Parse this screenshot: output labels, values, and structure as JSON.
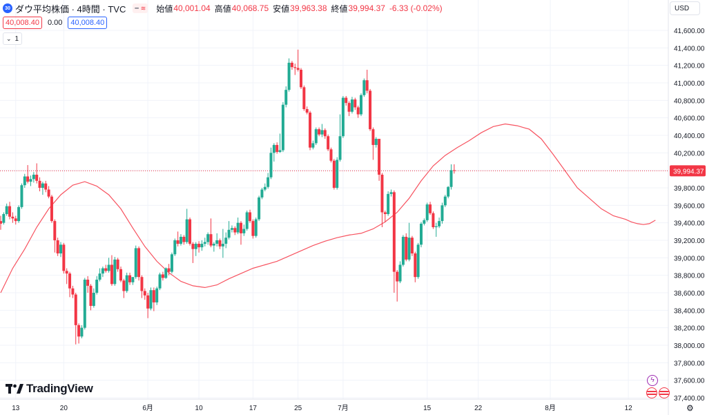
{
  "symbol": {
    "badge": "30",
    "title": "ダウ平均株価 · 4時間 · TVC",
    "toggle_dash": "━",
    "toggle_wave": "≋"
  },
  "ohlc": {
    "open_label": "始値",
    "open": "40,001.04",
    "high_label": "高値",
    "high": "40,068.75",
    "low_label": "安値",
    "low": "39,963.38",
    "close_label": "終値",
    "close": "39,994.37",
    "change": "-6.33 (-0.02%)"
  },
  "quote": {
    "sell": "40,008.40",
    "spread": "0.00",
    "buy": "40,008.40"
  },
  "indicator_toggle": {
    "chevron": "⌄",
    "count": "1"
  },
  "currency": "USD",
  "current_price_label": "39,994.37",
  "brand": "TradingView",
  "icons": [
    "tradingview-logo-icon",
    "lightning-icon",
    "us-flag-icon",
    "settings-gear-icon"
  ],
  "colors": {
    "up": "#22ab94",
    "down": "#f23645",
    "ma": "#f7525f",
    "accent": "#2962ff"
  },
  "chart_data": {
    "type": "candlestick",
    "title": "ダウ平均株価 · 4時間 · TVC",
    "ylim": [
      37400,
      41750
    ],
    "y_ticks": [
      "41,600.00",
      "41,400.00",
      "41,200.00",
      "41,000.00",
      "40,800.00",
      "40,600.00",
      "40,400.00",
      "40,200.00",
      "40,000.00",
      "39,800.00",
      "39,600.00",
      "39,400.00",
      "39,200.00",
      "39,000.00",
      "38,800.00",
      "38,600.00",
      "38,400.00",
      "38,200.00",
      "38,000.00",
      "37,800.00",
      "37,600.00",
      "37,400.00"
    ],
    "x_ticks": [
      "13",
      "20",
      "6月",
      "10",
      "17",
      "25",
      "7月",
      "15",
      "22",
      "8月",
      "12"
    ],
    "grid": true,
    "last_price": 39994.37,
    "candles": [
      [
        39420,
        39390,
        39480,
        39320
      ],
      [
        39400,
        39500,
        39520,
        39380
      ],
      [
        39500,
        39590,
        39620,
        39480
      ],
      [
        39590,
        39470,
        39640,
        39440
      ],
      [
        39470,
        39450,
        39520,
        39400
      ],
      [
        39450,
        39420,
        39480,
        39380
      ],
      [
        39420,
        39580,
        39600,
        39400
      ],
      [
        39580,
        39830,
        39850,
        39560
      ],
      [
        39830,
        39930,
        39960,
        39800
      ],
      [
        39930,
        39870,
        40060,
        39850
      ],
      [
        39870,
        39900,
        39940,
        39820
      ],
      [
        39900,
        39950,
        39980,
        39860
      ],
      [
        39950,
        39880,
        40080,
        39850
      ],
      [
        39880,
        39800,
        39920,
        39760
      ],
      [
        39800,
        39850,
        39870,
        39720
      ],
      [
        39850,
        39780,
        39880,
        39750
      ],
      [
        39780,
        39700,
        39820,
        39680
      ],
      [
        39700,
        39420,
        39720,
        39400
      ],
      [
        39420,
        39200,
        39440,
        39060
      ],
      [
        39200,
        39050,
        39230,
        39020
      ],
      [
        39050,
        39150,
        39180,
        39010
      ],
      [
        39150,
        38850,
        39170,
        38820
      ],
      [
        38850,
        38820,
        38880,
        38700
      ],
      [
        38820,
        38650,
        38840,
        38550
      ],
      [
        38650,
        38580,
        38680,
        38540
      ],
      [
        38580,
        38230,
        38600,
        38010
      ],
      [
        38230,
        38100,
        38250,
        38020
      ],
      [
        38100,
        38200,
        38230,
        38080
      ],
      [
        38200,
        38750,
        38770,
        38180
      ],
      [
        38750,
        38680,
        38790,
        38600
      ],
      [
        38680,
        38450,
        38700,
        38400
      ],
      [
        38450,
        38600,
        38650,
        38430
      ],
      [
        38600,
        38750,
        38790,
        38580
      ],
      [
        38750,
        38820,
        38880,
        38730
      ],
      [
        38820,
        38880,
        38900,
        38780
      ],
      [
        38880,
        38850,
        38920,
        38830
      ],
      [
        38850,
        38920,
        39000,
        38830
      ],
      [
        38920,
        38700,
        39030,
        38680
      ],
      [
        38700,
        38980,
        39010,
        38680
      ],
      [
        38980,
        38870,
        39000,
        38840
      ],
      [
        38870,
        38740,
        38900,
        38720
      ],
      [
        38740,
        38620,
        38760,
        38540
      ],
      [
        38620,
        38800,
        38830,
        38600
      ],
      [
        38800,
        38720,
        38830,
        38690
      ],
      [
        38720,
        38780,
        38780,
        38690
      ],
      [
        38780,
        39110,
        39140,
        38760
      ],
      [
        39110,
        38780,
        39130,
        38740
      ],
      [
        38780,
        38620,
        38800,
        38540
      ],
      [
        38620,
        38570,
        38650,
        38520
      ],
      [
        38570,
        38420,
        38600,
        38310
      ],
      [
        38420,
        38630,
        38660,
        38400
      ],
      [
        38630,
        38490,
        38660,
        38390
      ],
      [
        38490,
        38650,
        38670,
        38460
      ],
      [
        38650,
        38810,
        38830,
        38630
      ],
      [
        38810,
        38770,
        38840,
        38740
      ],
      [
        38770,
        38880,
        38890,
        38760
      ],
      [
        38880,
        38840,
        38930,
        38800
      ],
      [
        38840,
        39040,
        39060,
        38820
      ],
      [
        39040,
        39200,
        39220,
        39020
      ],
      [
        39200,
        39160,
        39300,
        39130
      ],
      [
        39160,
        39240,
        39270,
        39140
      ],
      [
        39240,
        39180,
        39260,
        39150
      ],
      [
        39180,
        39440,
        39560,
        39160
      ],
      [
        39440,
        39160,
        39460,
        39140
      ],
      [
        39160,
        39100,
        39180,
        38940
      ],
      [
        39100,
        39160,
        39180,
        39020
      ],
      [
        39160,
        39120,
        39190,
        39060
      ],
      [
        39120,
        39160,
        39200,
        39080
      ],
      [
        39160,
        39180,
        39230,
        39130
      ],
      [
        39180,
        39270,
        39290,
        39150
      ],
      [
        39270,
        39140,
        39450,
        39120
      ],
      [
        39140,
        39160,
        39180,
        39070
      ],
      [
        39160,
        39200,
        39280,
        39130
      ],
      [
        39200,
        39130,
        39220,
        39100
      ],
      [
        39130,
        39160,
        39330,
        39000
      ],
      [
        39160,
        39230,
        39290,
        39110
      ],
      [
        39230,
        39320,
        39420,
        39210
      ],
      [
        39320,
        39340,
        39370,
        39290
      ],
      [
        39340,
        39290,
        39360,
        39260
      ],
      [
        39290,
        39400,
        39460,
        39270
      ],
      [
        39400,
        39280,
        39420,
        39150
      ],
      [
        39280,
        39330,
        39380,
        39250
      ],
      [
        39330,
        39520,
        39540,
        39310
      ],
      [
        39520,
        39420,
        39550,
        39400
      ],
      [
        39420,
        39250,
        39440,
        39220
      ],
      [
        39250,
        39440,
        39460,
        39230
      ],
      [
        39440,
        39690,
        39710,
        39420
      ],
      [
        39690,
        39780,
        39800,
        39670
      ],
      [
        39780,
        39810,
        39850,
        39760
      ],
      [
        39810,
        39920,
        39970,
        39790
      ],
      [
        39920,
        40200,
        40260,
        39900
      ],
      [
        40200,
        40290,
        40310,
        40100
      ],
      [
        40290,
        40210,
        40320,
        40190
      ],
      [
        40210,
        40230,
        40420,
        40200
      ],
      [
        40230,
        40750,
        40780,
        40210
      ],
      [
        40750,
        40920,
        40960,
        40720
      ],
      [
        40920,
        41230,
        41280,
        40900
      ],
      [
        41230,
        41180,
        41250,
        41150
      ],
      [
        41180,
        41170,
        41220,
        41090
      ],
      [
        41170,
        41150,
        41380,
        41130
      ],
      [
        41150,
        40950,
        41170,
        40930
      ],
      [
        40950,
        40700,
        40970,
        40680
      ],
      [
        40700,
        40660,
        40730,
        40640
      ],
      [
        40660,
        40260,
        40680,
        40230
      ],
      [
        40260,
        40310,
        40340,
        40240
      ],
      [
        40310,
        40470,
        40490,
        40290
      ],
      [
        40470,
        40410,
        40490,
        40390
      ],
      [
        40410,
        40460,
        40530,
        40380
      ],
      [
        40460,
        40390,
        40480,
        40360
      ],
      [
        40390,
        40240,
        40410,
        40220
      ],
      [
        40240,
        40110,
        40260,
        40090
      ],
      [
        40110,
        39800,
        40130,
        39780
      ],
      [
        39800,
        40120,
        40150,
        39780
      ],
      [
        40120,
        40390,
        40640,
        40100
      ],
      [
        40390,
        40830,
        40850,
        40370
      ],
      [
        40830,
        40770,
        40850,
        40740
      ],
      [
        40770,
        40670,
        40790,
        40620
      ],
      [
        40670,
        40810,
        40840,
        40650
      ],
      [
        40810,
        40720,
        40830,
        40690
      ],
      [
        40720,
        40640,
        40740,
        40600
      ],
      [
        40640,
        40860,
        40880,
        40620
      ],
      [
        40860,
        41030,
        41050,
        40840
      ],
      [
        41030,
        40910,
        41150,
        40880
      ],
      [
        40910,
        40470,
        40930,
        40450
      ],
      [
        40470,
        40290,
        40490,
        40120
      ],
      [
        40290,
        40360,
        40380,
        40260
      ],
      [
        40360,
        39950,
        40020,
        39880
      ],
      [
        39950,
        39520,
        39970,
        39350
      ],
      [
        39520,
        39500,
        39540,
        39410
      ],
      [
        39500,
        39730,
        39760,
        39480
      ],
      [
        39730,
        39750,
        39780,
        39700
      ],
      [
        39750,
        38840,
        39770,
        38600
      ],
      [
        38840,
        38730,
        38860,
        38500
      ],
      [
        38730,
        38920,
        38960,
        38710
      ],
      [
        38920,
        39240,
        39260,
        38900
      ],
      [
        39240,
        38980,
        39280,
        38960
      ],
      [
        38980,
        39230,
        39400,
        38960
      ],
      [
        39230,
        39050,
        39250,
        39020
      ],
      [
        39050,
        38780,
        39070,
        38720
      ],
      [
        38780,
        39150,
        39170,
        38760
      ],
      [
        39150,
        39390,
        39410,
        39120
      ],
      [
        39390,
        39430,
        39450,
        39370
      ],
      [
        39430,
        39610,
        39630,
        39410
      ],
      [
        39610,
        39510,
        39640,
        39490
      ],
      [
        39510,
        39350,
        39530,
        39330
      ],
      [
        39350,
        39360,
        39400,
        39240
      ],
      [
        39360,
        39420,
        39460,
        39340
      ],
      [
        39420,
        39600,
        39630,
        39390
      ],
      [
        39600,
        39700,
        39720,
        39580
      ],
      [
        39700,
        39810,
        39820,
        39680
      ],
      [
        39810,
        40001,
        40068,
        39780
      ],
      [
        40001,
        39994,
        40069,
        39963
      ]
    ],
    "ma": [
      [
        0,
        38600
      ],
      [
        4,
        38880
      ],
      [
        8,
        39100
      ],
      [
        12,
        39350
      ],
      [
        16,
        39560
      ],
      [
        20,
        39720
      ],
      [
        24,
        39830
      ],
      [
        28,
        39870
      ],
      [
        32,
        39820
      ],
      [
        36,
        39720
      ],
      [
        40,
        39560
      ],
      [
        44,
        39340
      ],
      [
        48,
        39130
      ],
      [
        52,
        38960
      ],
      [
        56,
        38830
      ],
      [
        60,
        38730
      ],
      [
        64,
        38680
      ],
      [
        68,
        38660
      ],
      [
        72,
        38690
      ],
      [
        76,
        38760
      ],
      [
        80,
        38820
      ],
      [
        84,
        38880
      ],
      [
        88,
        38920
      ],
      [
        92,
        38960
      ],
      [
        96,
        39020
      ],
      [
        100,
        39080
      ],
      [
        104,
        39140
      ],
      [
        108,
        39190
      ],
      [
        112,
        39230
      ],
      [
        116,
        39260
      ],
      [
        120,
        39280
      ],
      [
        124,
        39330
      ],
      [
        128,
        39410
      ],
      [
        132,
        39520
      ],
      [
        136,
        39680
      ],
      [
        140,
        39880
      ],
      [
        144,
        40050
      ],
      [
        148,
        40170
      ],
      [
        152,
        40260
      ],
      [
        156,
        40340
      ],
      [
        160,
        40430
      ],
      [
        164,
        40500
      ],
      [
        168,
        40530
      ],
      [
        172,
        40510
      ],
      [
        176,
        40470
      ],
      [
        180,
        40360
      ],
      [
        184,
        40180
      ],
      [
        188,
        39990
      ],
      [
        192,
        39800
      ],
      [
        196,
        39680
      ],
      [
        200,
        39560
      ],
      [
        204,
        39480
      ],
      [
        208,
        39440
      ],
      [
        210,
        39410
      ],
      [
        212,
        39390
      ],
      [
        214,
        39380
      ],
      [
        216,
        39390
      ],
      [
        218,
        39430
      ]
    ]
  }
}
